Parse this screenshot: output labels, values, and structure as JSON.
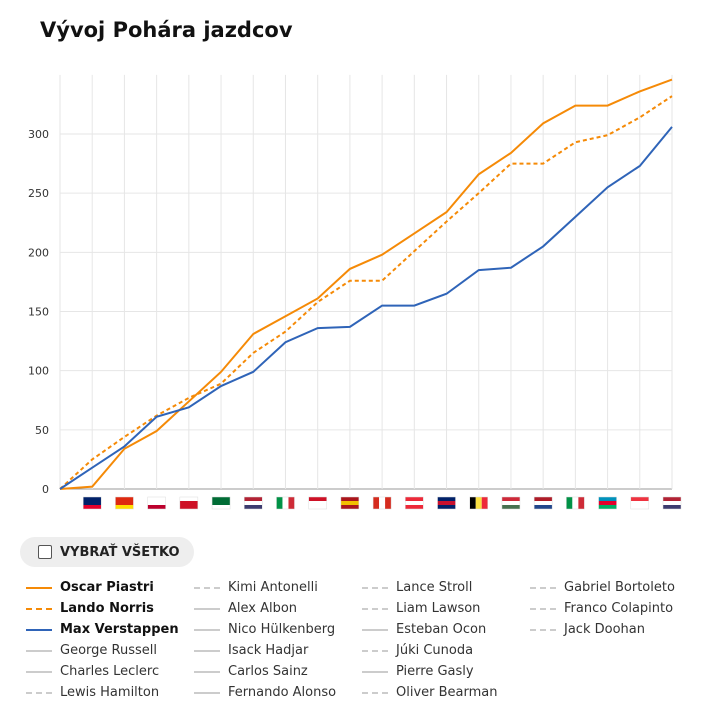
{
  "title": "Vývoj Pohára jazdcov",
  "select_all": "VYBRAŤ VŠETKO",
  "chart_data": {
    "type": "line",
    "title": "Vývoj Pohára jazdcov",
    "ylim": [
      0,
      350
    ],
    "yticks": [
      0,
      50,
      100,
      150,
      200,
      250,
      300
    ],
    "categories": [
      "",
      "AUS",
      "CHN",
      "JPN",
      "BHR",
      "SAU",
      "USA",
      "ITA",
      "MON",
      "ESP",
      "CAN",
      "AUT",
      "GBR",
      "BEL",
      "HUN",
      "NED",
      "ITA",
      "AZE",
      "SGP",
      "USA"
    ],
    "series": [
      {
        "name": "Oscar Piastri",
        "color": "#f58a07",
        "dash": false,
        "values": [
          0,
          2,
          34,
          49,
          74,
          99,
          131,
          146,
          161,
          186,
          198,
          216,
          234,
          266,
          284,
          309,
          324,
          324,
          336,
          346
        ]
      },
      {
        "name": "Lando Norris",
        "color": "#f58a07",
        "dash": true,
        "values": [
          0,
          25,
          44,
          62,
          77,
          89,
          115,
          133,
          158,
          176,
          176,
          201,
          226,
          250,
          275,
          275,
          293,
          299,
          314,
          332
        ]
      },
      {
        "name": "Max Verstappen",
        "color": "#2f64b8",
        "dash": false,
        "values": [
          0,
          18,
          36,
          61,
          69,
          87,
          99,
          124,
          136,
          137,
          155,
          155,
          165,
          185,
          187,
          205,
          230,
          255,
          273,
          306
        ]
      }
    ]
  },
  "legend": [
    {
      "name": "Oscar Piastri",
      "on": true,
      "color": "#f58a07",
      "dash": false
    },
    {
      "name": "Lando Norris",
      "on": true,
      "color": "#f58a07",
      "dash": true
    },
    {
      "name": "Max Verstappen",
      "on": true,
      "color": "#2f64b8",
      "dash": false
    },
    {
      "name": "George Russell",
      "dash": false
    },
    {
      "name": "Charles Leclerc",
      "dash": false
    },
    {
      "name": "Lewis Hamilton",
      "dash": true
    },
    {
      "name": "Kimi Antonelli",
      "dash": true
    },
    {
      "name": "Alex Albon",
      "dash": false
    },
    {
      "name": "Nico Hülkenberg",
      "dash": false
    },
    {
      "name": "Isack Hadjar",
      "dash": false
    },
    {
      "name": "Carlos Sainz",
      "dash": false
    },
    {
      "name": "Fernando Alonso",
      "dash": false
    },
    {
      "name": "Lance Stroll",
      "dash": true
    },
    {
      "name": "Liam Lawson",
      "dash": true
    },
    {
      "name": "Esteban Ocon",
      "dash": false
    },
    {
      "name": "Júki Cunoda",
      "dash": true
    },
    {
      "name": "Pierre Gasly",
      "dash": false
    },
    {
      "name": "Oliver Bearman",
      "dash": true
    },
    {
      "name": "Gabriel Bortoleto",
      "dash": true
    },
    {
      "name": "Franco Colapinto",
      "dash": true
    },
    {
      "name": "Jack Doohan",
      "dash": true
    }
  ]
}
